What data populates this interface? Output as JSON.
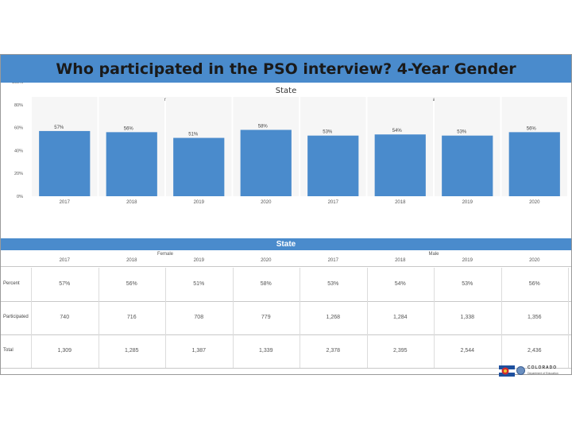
{
  "slide_title": "Who participated in the PSO interview? 4-Year Gender",
  "chart_data": {
    "type": "bar",
    "title": "State",
    "groups": [
      "Female",
      "Male"
    ],
    "categories": [
      "2017",
      "2018",
      "2019",
      "2020",
      "2017",
      "2018",
      "2019",
      "2020"
    ],
    "group_of_category": [
      0,
      0,
      0,
      0,
      1,
      1,
      1,
      1
    ],
    "values": [
      57,
      56,
      51,
      58,
      53,
      54,
      53,
      56
    ],
    "value_labels": [
      "57%",
      "56%",
      "51%",
      "58%",
      "53%",
      "54%",
      "53%",
      "56%"
    ],
    "y_ticks": [
      "100%",
      "80%",
      "60%",
      "40%",
      "20%",
      "0%"
    ],
    "ylim": [
      0,
      100
    ],
    "bar_color": "#4a8bcc",
    "grid": false,
    "legend": "none"
  },
  "table": {
    "title": "State",
    "groups": [
      "Female",
      "Male"
    ],
    "years": [
      "2017",
      "2018",
      "2019",
      "2020",
      "2017",
      "2018",
      "2019",
      "2020"
    ],
    "rows": [
      {
        "label": "Percent",
        "cells": [
          "57%",
          "56%",
          "51%",
          "58%",
          "53%",
          "54%",
          "53%",
          "56%"
        ]
      },
      {
        "label": "Participated",
        "cells": [
          "740",
          "716",
          "708",
          "779",
          "1,268",
          "1,284",
          "1,338",
          "1,356"
        ]
      },
      {
        "label": "Total",
        "cells": [
          "1,309",
          "1,285",
          "1,387",
          "1,339",
          "2,378",
          "2,395",
          "2,544",
          "2,436"
        ]
      }
    ]
  },
  "logo": {
    "word": "COLORADO",
    "sub": "Department of Education"
  },
  "colors": {
    "accent": "#4a8bcc"
  }
}
